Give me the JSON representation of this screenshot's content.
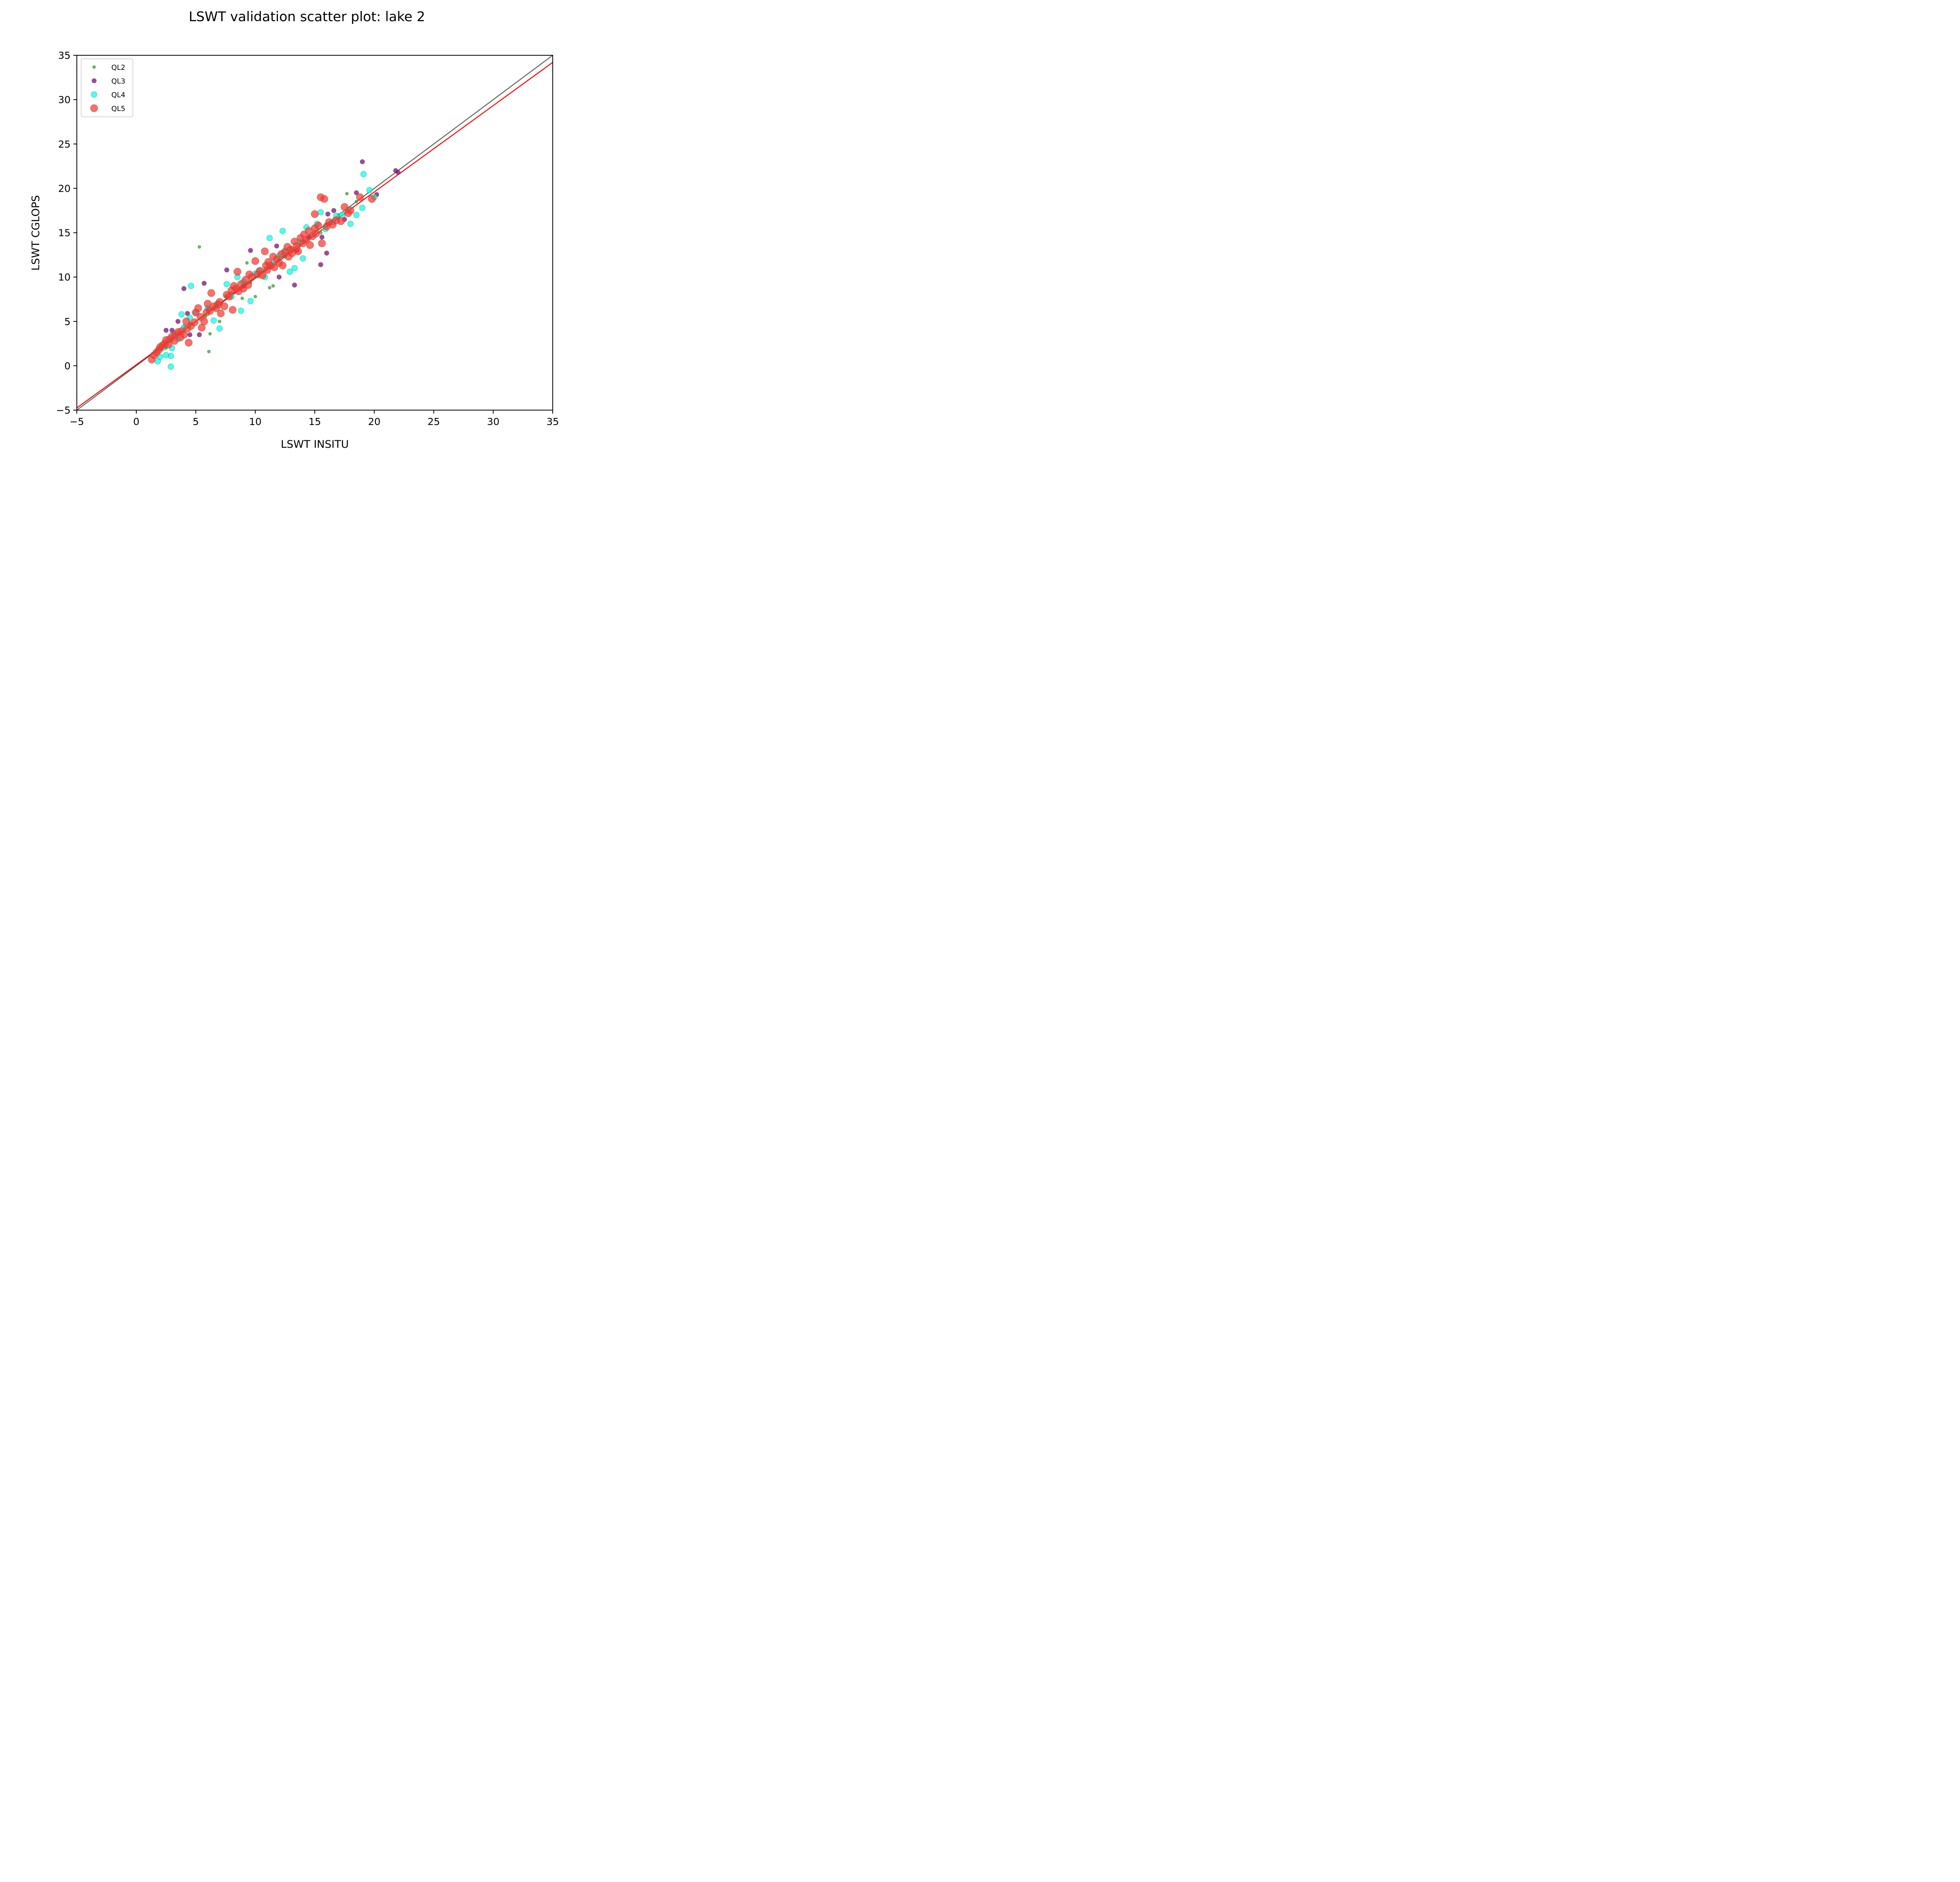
{
  "chart_data": {
    "type": "scatter",
    "title": "LSWT validation scatter plot: lake 2",
    "xlabel": "LSWT INSITU",
    "ylabel": "LSWT CGLOPS",
    "xlim": [
      -5,
      35
    ],
    "ylim": [
      -5,
      35
    ],
    "xticks": [
      -5,
      0,
      5,
      10,
      15,
      20,
      25,
      30,
      35
    ],
    "yticks": [
      -5,
      0,
      5,
      10,
      15,
      20,
      25,
      30,
      35
    ],
    "xtick_labels": [
      "−5",
      "0",
      "5",
      "10",
      "15",
      "20",
      "25",
      "30",
      "35"
    ],
    "ytick_labels": [
      "−5",
      "0",
      "5",
      "10",
      "15",
      "20",
      "25",
      "30",
      "35"
    ],
    "grid": false,
    "legend_position": "top-left",
    "lines": [
      {
        "role": "identity",
        "color": "#666666",
        "points": [
          [
            -5,
            -5
          ],
          [
            35,
            35
          ]
        ]
      },
      {
        "role": "fit",
        "color": "#ff0000",
        "points": [
          [
            -5,
            -4.75
          ],
          [
            35,
            34.2
          ]
        ]
      }
    ],
    "series": [
      {
        "name": "QL2",
        "color": "#2ca02c",
        "points": [
          [
            5.3,
            13.4
          ],
          [
            6.1,
            1.6
          ],
          [
            6.2,
            3.6
          ],
          [
            5.8,
            5.5
          ],
          [
            7.0,
            5.0
          ],
          [
            9.3,
            11.6
          ],
          [
            8.9,
            7.6
          ],
          [
            10.0,
            7.8
          ],
          [
            11.5,
            9.0
          ],
          [
            11.2,
            8.8
          ],
          [
            17.7,
            19.4
          ],
          [
            18.5,
            18.5
          ],
          [
            4.0,
            4.5
          ],
          [
            3.0,
            3.0
          ],
          [
            2.5,
            2.0
          ],
          [
            6.5,
            6.5
          ],
          [
            8.0,
            8.2
          ],
          [
            12.0,
            12.0
          ],
          [
            14.0,
            14.0
          ],
          [
            16.0,
            16.0
          ],
          [
            9.6,
            9.4
          ],
          [
            13.0,
            13.3
          ],
          [
            15.5,
            15.0
          ],
          [
            7.5,
            7.8
          ],
          [
            4.5,
            4.8
          ],
          [
            10.5,
            10.6
          ],
          [
            12.5,
            12.3
          ],
          [
            17.0,
            17.0
          ]
        ]
      },
      {
        "name": "QL3",
        "color": "#800080",
        "points": [
          [
            19.0,
            23.0
          ],
          [
            21.8,
            22.0
          ],
          [
            22.0,
            21.8
          ],
          [
            18.5,
            19.5
          ],
          [
            20.2,
            19.3
          ],
          [
            16.0,
            12.7
          ],
          [
            15.5,
            11.4
          ],
          [
            13.3,
            9.1
          ],
          [
            12.0,
            10.0
          ],
          [
            9.6,
            13.0
          ],
          [
            7.6,
            10.8
          ],
          [
            5.7,
            9.3
          ],
          [
            4.0,
            8.7
          ],
          [
            5.3,
            3.5
          ],
          [
            4.5,
            3.5
          ],
          [
            3.5,
            5.0
          ],
          [
            2.5,
            4.0
          ],
          [
            3.0,
            4.0
          ],
          [
            4.3,
            5.9
          ],
          [
            11.8,
            13.5
          ],
          [
            16.1,
            17.1
          ],
          [
            16.6,
            17.5
          ],
          [
            15.6,
            14.5
          ],
          [
            9.0,
            9.0
          ],
          [
            6.0,
            6.4
          ],
          [
            13.5,
            13.0
          ],
          [
            14.5,
            14.5
          ],
          [
            17.5,
            16.5
          ]
        ]
      },
      {
        "name": "QL4",
        "color": "#00ffee",
        "points": [
          [
            2.9,
            -0.1
          ],
          [
            1.8,
            0.5
          ],
          [
            2.0,
            1.0
          ],
          [
            2.9,
            1.1
          ],
          [
            2.5,
            1.2
          ],
          [
            3.0,
            2.0
          ],
          [
            3.5,
            3.0
          ],
          [
            4.0,
            4.3
          ],
          [
            3.8,
            5.8
          ],
          [
            4.5,
            5.4
          ],
          [
            4.6,
            9.0
          ],
          [
            6.5,
            5.1
          ],
          [
            7.0,
            4.2
          ],
          [
            8.8,
            6.2
          ],
          [
            8.0,
            7.8
          ],
          [
            9.6,
            7.3
          ],
          [
            7.6,
            9.2
          ],
          [
            8.5,
            10.0
          ],
          [
            10.3,
            10.7
          ],
          [
            11.2,
            14.4
          ],
          [
            12.3,
            15.2
          ],
          [
            12.5,
            13.0
          ],
          [
            12.9,
            10.6
          ],
          [
            13.3,
            11.0
          ],
          [
            14.0,
            12.1
          ],
          [
            15.2,
            16.0
          ],
          [
            15.5,
            17.3
          ],
          [
            16.5,
            16.2
          ],
          [
            17.3,
            17.0
          ],
          [
            18.0,
            16.0
          ],
          [
            18.5,
            17.0
          ],
          [
            19.0,
            17.8
          ],
          [
            19.1,
            21.6
          ],
          [
            19.6,
            19.8
          ],
          [
            20.0,
            19.0
          ],
          [
            11.5,
            11.5
          ],
          [
            10.8,
            10.0
          ],
          [
            6.0,
            6.5
          ],
          [
            5.0,
            6.0
          ],
          [
            13.8,
            14.0
          ],
          [
            14.3,
            15.6
          ],
          [
            16.8,
            16.9
          ],
          [
            17.8,
            17.6
          ],
          [
            12.0,
            12.4
          ],
          [
            9.0,
            9.5
          ],
          [
            10.0,
            10.4
          ],
          [
            15.9,
            15.4
          ],
          [
            6.8,
            7.0
          ],
          [
            3.2,
            3.5
          ],
          [
            2.2,
            2.0
          ]
        ]
      },
      {
        "name": "QL5",
        "color": "#ff3333",
        "points": [
          [
            1.3,
            0.7
          ],
          [
            1.5,
            1.2
          ],
          [
            1.7,
            1.5
          ],
          [
            1.9,
            1.8
          ],
          [
            2.0,
            2.1
          ],
          [
            2.2,
            2.3
          ],
          [
            2.4,
            2.5
          ],
          [
            2.5,
            2.9
          ],
          [
            2.7,
            2.4
          ],
          [
            2.8,
            3.0
          ],
          [
            3.0,
            3.3
          ],
          [
            3.2,
            2.8
          ],
          [
            3.3,
            3.5
          ],
          [
            3.5,
            3.8
          ],
          [
            3.7,
            3.2
          ],
          [
            3.8,
            3.9
          ],
          [
            4.0,
            3.5
          ],
          [
            4.2,
            5.0
          ],
          [
            4.3,
            4.2
          ],
          [
            4.4,
            2.6
          ],
          [
            4.6,
            4.5
          ],
          [
            4.9,
            4.9
          ],
          [
            5.0,
            6.0
          ],
          [
            5.2,
            6.5
          ],
          [
            5.4,
            5.5
          ],
          [
            5.5,
            4.3
          ],
          [
            5.7,
            5.0
          ],
          [
            5.9,
            6.0
          ],
          [
            6.0,
            7.0
          ],
          [
            6.2,
            6.2
          ],
          [
            6.3,
            8.2
          ],
          [
            6.5,
            6.7
          ],
          [
            6.7,
            6.5
          ],
          [
            6.9,
            6.9
          ],
          [
            7.0,
            7.2
          ],
          [
            7.1,
            5.9
          ],
          [
            7.4,
            6.7
          ],
          [
            7.6,
            8.0
          ],
          [
            7.8,
            7.8
          ],
          [
            8.0,
            8.5
          ],
          [
            8.1,
            6.3
          ],
          [
            8.2,
            9.0
          ],
          [
            8.4,
            8.7
          ],
          [
            8.5,
            10.6
          ],
          [
            8.6,
            8.4
          ],
          [
            8.8,
            9.2
          ],
          [
            9.0,
            8.7
          ],
          [
            9.2,
            9.7
          ],
          [
            9.4,
            9.1
          ],
          [
            9.5,
            10.3
          ],
          [
            9.7,
            10.0
          ],
          [
            10.0,
            11.8
          ],
          [
            10.2,
            10.3
          ],
          [
            10.4,
            10.7
          ],
          [
            10.6,
            10.2
          ],
          [
            10.8,
            12.9
          ],
          [
            10.9,
            11.3
          ],
          [
            11.0,
            10.8
          ],
          [
            11.1,
            11.7
          ],
          [
            11.3,
            11.3
          ],
          [
            11.5,
            12.3
          ],
          [
            11.6,
            11.1
          ],
          [
            11.8,
            12.0
          ],
          [
            12.0,
            11.6
          ],
          [
            12.2,
            12.6
          ],
          [
            12.3,
            11.3
          ],
          [
            12.5,
            12.8
          ],
          [
            12.7,
            13.4
          ],
          [
            12.8,
            12.3
          ],
          [
            13.0,
            13.1
          ],
          [
            13.1,
            12.7
          ],
          [
            13.3,
            14.0
          ],
          [
            13.5,
            13.5
          ],
          [
            13.6,
            12.9
          ],
          [
            13.8,
            14.4
          ],
          [
            14.0,
            13.8
          ],
          [
            14.1,
            14.8
          ],
          [
            14.3,
            14.2
          ],
          [
            14.5,
            15.2
          ],
          [
            14.6,
            13.6
          ],
          [
            14.8,
            14.6
          ],
          [
            15.0,
            15.5
          ],
          [
            15.1,
            14.9
          ],
          [
            15.3,
            15.8
          ],
          [
            15.5,
            19.0
          ],
          [
            15.6,
            13.8
          ],
          [
            15.8,
            18.8
          ],
          [
            15.0,
            17.1
          ],
          [
            16.0,
            15.7
          ],
          [
            16.2,
            16.2
          ],
          [
            16.5,
            15.9
          ],
          [
            16.8,
            16.4
          ],
          [
            17.2,
            16.3
          ],
          [
            17.5,
            17.9
          ],
          [
            17.8,
            17.2
          ],
          [
            18.0,
            17.5
          ],
          [
            18.8,
            19.0
          ],
          [
            19.8,
            18.8
          ]
        ]
      }
    ]
  }
}
